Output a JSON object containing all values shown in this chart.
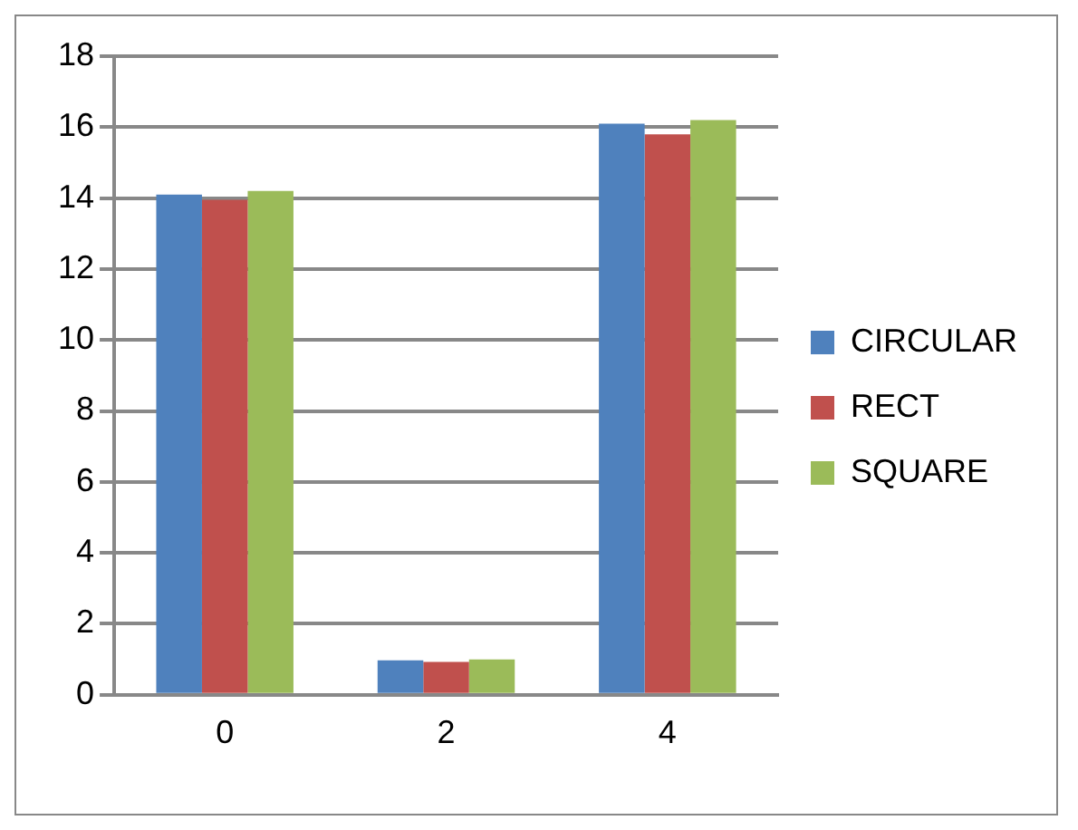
{
  "chart_data": {
    "type": "bar",
    "categories": [
      "0",
      "2",
      "4"
    ],
    "series": [
      {
        "name": "CIRCULAR",
        "color": "#4f81bd",
        "values": [
          14.1,
          0.97,
          16.1
        ]
      },
      {
        "name": "RECT",
        "color": "#c0504d",
        "values": [
          13.95,
          0.93,
          15.8
        ]
      },
      {
        "name": "SQUARE",
        "color": "#9bbb59",
        "values": [
          14.2,
          1.0,
          16.2
        ]
      }
    ],
    "ylim": [
      0,
      18
    ],
    "yticks": [
      0,
      2,
      4,
      6,
      8,
      10,
      12,
      14,
      16,
      18
    ],
    "grid": "y",
    "legend": "right"
  }
}
